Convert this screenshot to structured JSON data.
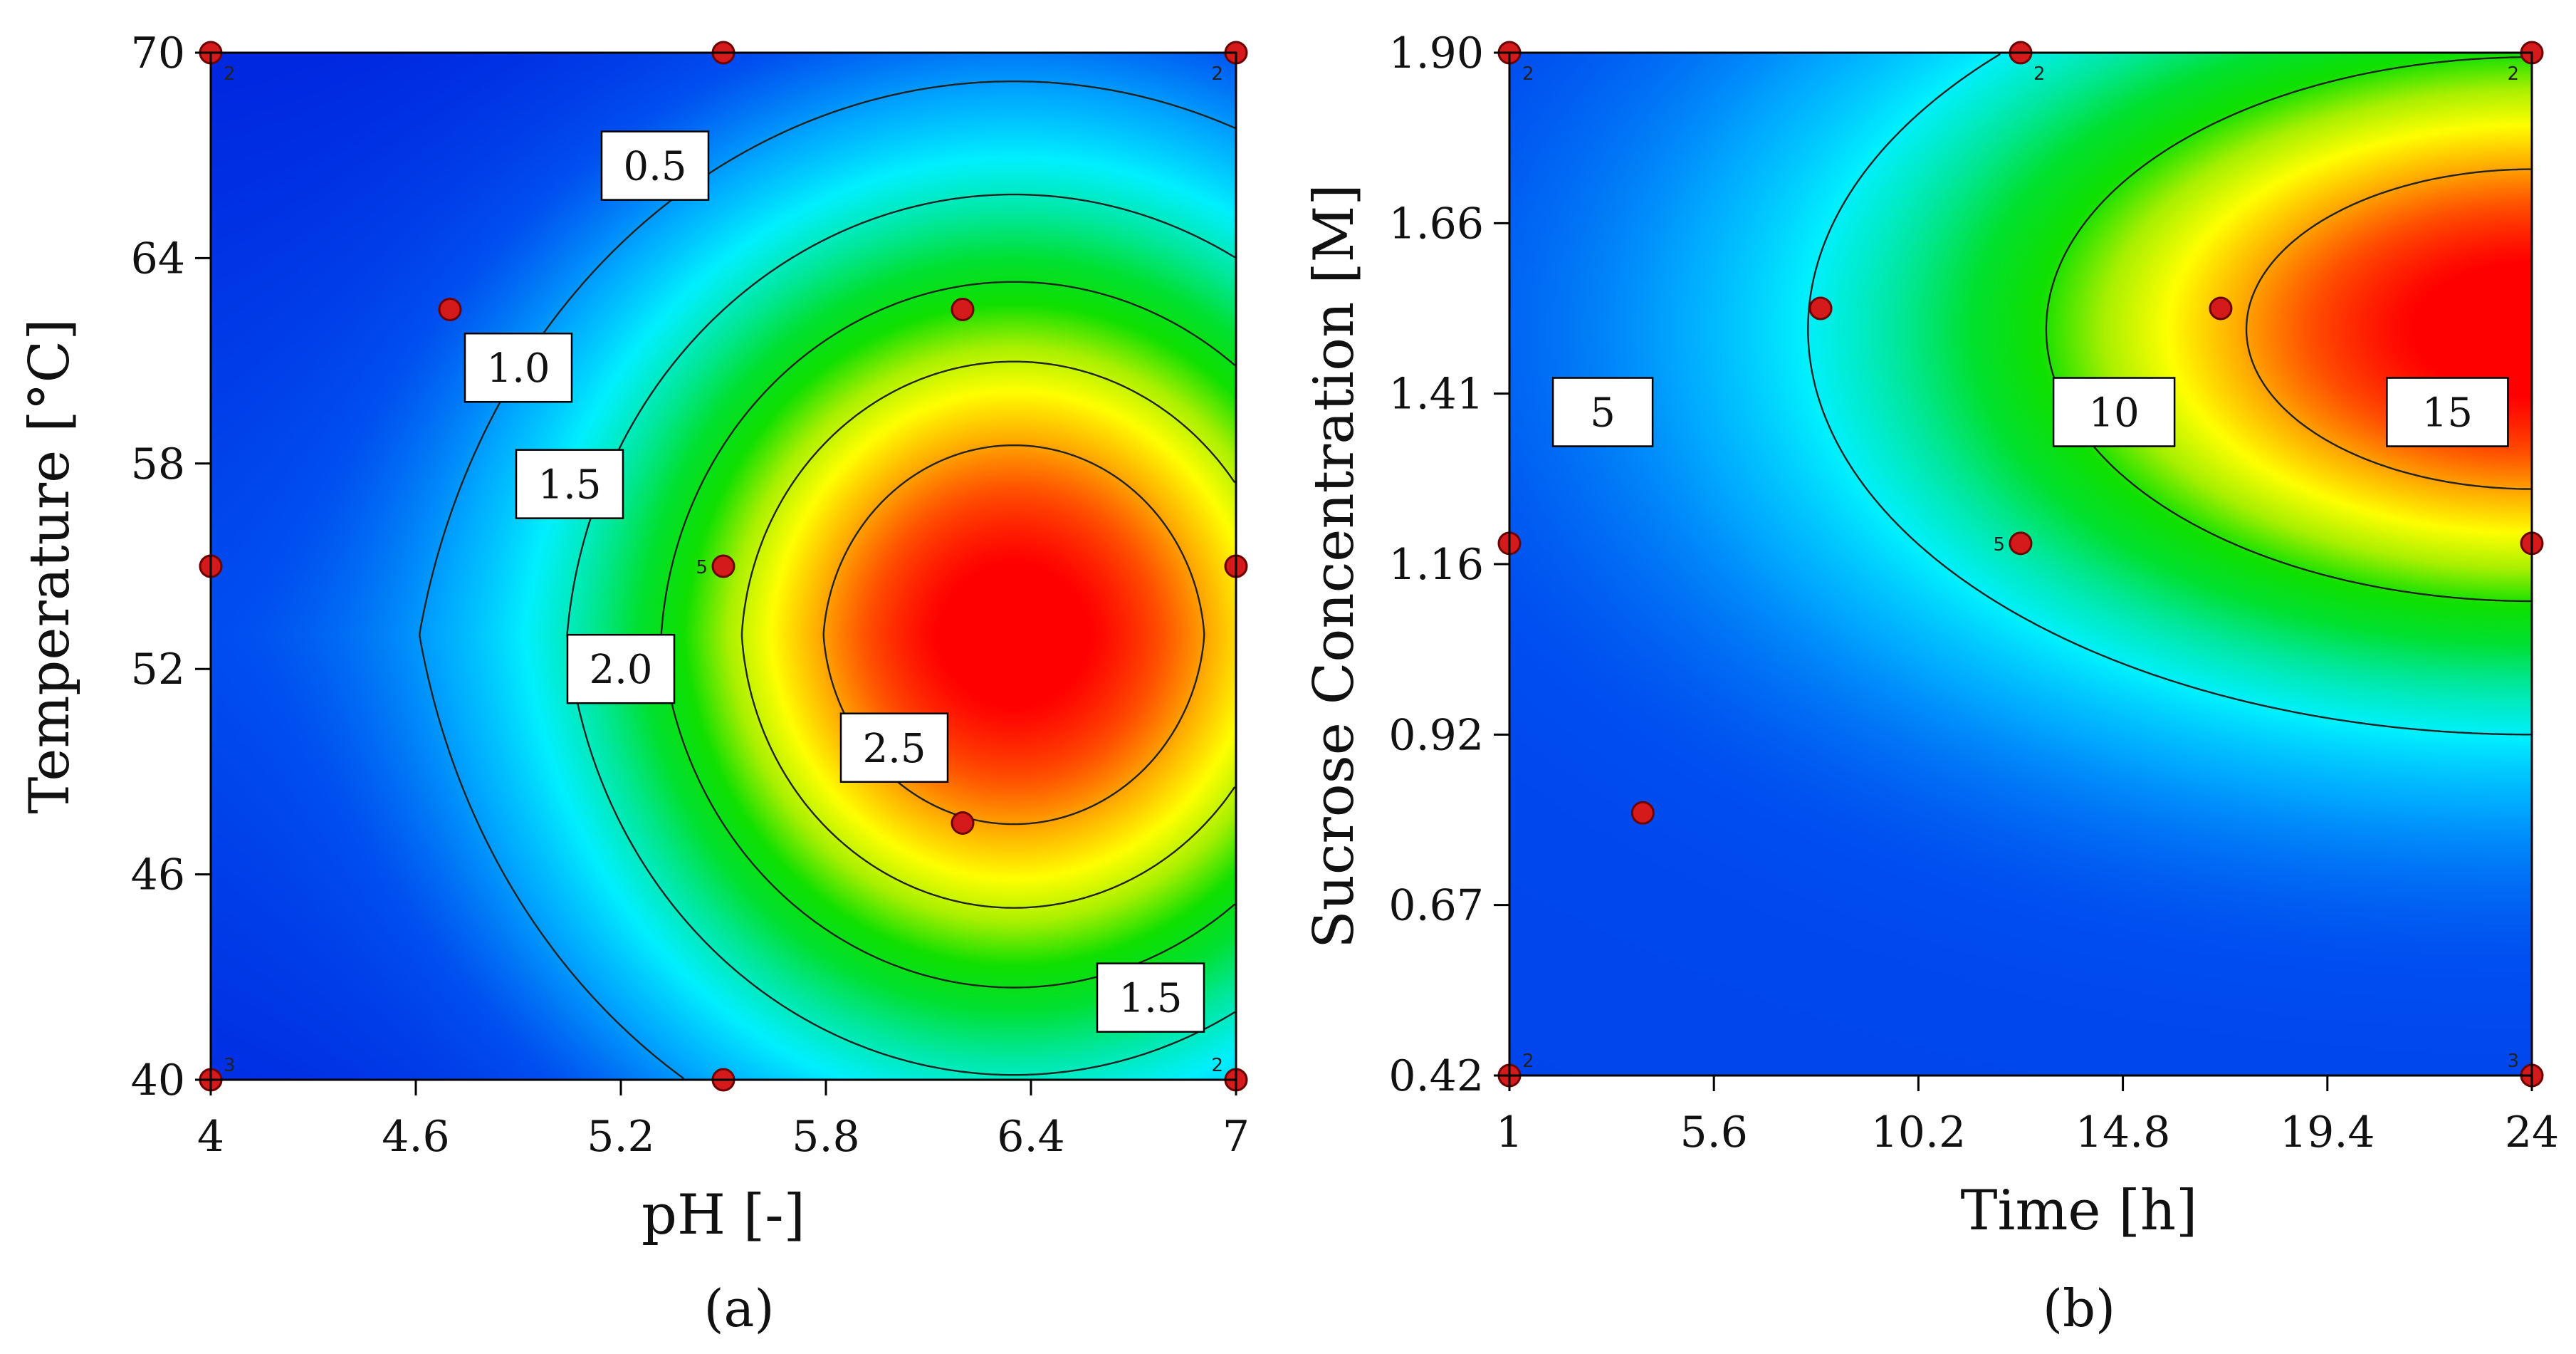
{
  "chart_data": [
    {
      "type": "heatmap",
      "panel": "(a)",
      "title": "",
      "xlabel": "pH [-]",
      "ylabel": "Temperature [°C]",
      "x_ticks": [
        "4",
        "4.6",
        "5.2",
        "5.8",
        "6.4",
        "7"
      ],
      "y_ticks": [
        "40",
        "46",
        "52",
        "58",
        "64",
        "70"
      ],
      "xlim": [
        4,
        7
      ],
      "ylim": [
        40,
        70
      ],
      "surface": {
        "max_at": [
          6.35,
          53
        ],
        "peak": 2.9,
        "falloff_x": 1.45,
        "falloff_y": 15.5,
        "offset": 0.35,
        "range": [
          0,
          3
        ]
      },
      "contours": [
        {
          "level": 0.5,
          "label": "0.5",
          "label_at": [
            5.3,
            66.7
          ]
        },
        {
          "level": 1.0,
          "label": "1.0",
          "label_at": [
            4.9,
            60.8
          ]
        },
        {
          "level": 1.5,
          "label": "1.5",
          "label_at": [
            5.05,
            57.4
          ]
        },
        {
          "level": 1.5,
          "label": "1.5",
          "label_at": [
            6.75,
            42.4
          ]
        },
        {
          "level": 2.0,
          "label": "2.0",
          "label_at": [
            5.2,
            52
          ]
        },
        {
          "level": 2.5,
          "label": "2.5",
          "label_at": [
            6.0,
            49.7
          ]
        }
      ],
      "design_points": [
        {
          "x": 4,
          "y": 70,
          "rep": "2"
        },
        {
          "x": 5.5,
          "y": 70,
          "rep": ""
        },
        {
          "x": 7,
          "y": 70,
          "rep": "2"
        },
        {
          "x": 4.7,
          "y": 62.5,
          "rep": ""
        },
        {
          "x": 6.2,
          "y": 62.5,
          "rep": ""
        },
        {
          "x": 4,
          "y": 55,
          "rep": ""
        },
        {
          "x": 5.5,
          "y": 55,
          "rep": "5"
        },
        {
          "x": 7,
          "y": 55,
          "rep": ""
        },
        {
          "x": 6.2,
          "y": 47.5,
          "rep": ""
        },
        {
          "x": 4,
          "y": 40,
          "rep": "3"
        },
        {
          "x": 5.5,
          "y": 40,
          "rep": ""
        },
        {
          "x": 7,
          "y": 40,
          "rep": "2"
        }
      ],
      "caption": "(a)"
    },
    {
      "type": "heatmap",
      "panel": "(b)",
      "title": "",
      "xlabel": "Time [h]",
      "ylabel": "Sucrose Concentration [M]",
      "x_ticks": [
        "1",
        "5.6",
        "10.2",
        "14.8",
        "19.4",
        "24"
      ],
      "y_ticks": [
        "0.42",
        "0.67",
        "0.92",
        "1.16",
        "1.41",
        "1.66",
        "1.90"
      ],
      "xlim": [
        1,
        24
      ],
      "ylim": [
        0.42,
        1.9
      ],
      "surface": {
        "max_at": [
          24,
          1.5
        ],
        "peak": 17.5,
        "base": 1.2,
        "falloff_x": 12.5,
        "falloff_y": 0.52,
        "range": [
          0,
          18
        ]
      },
      "contours": [
        {
          "level": 5,
          "label": "5",
          "label_at": [
            3.1,
            1.38
          ]
        },
        {
          "level": 10,
          "label": "10",
          "label_at": [
            14.6,
            1.38
          ]
        },
        {
          "level": 15,
          "label": "15",
          "label_at": [
            22.1,
            1.38
          ]
        }
      ],
      "design_points": [
        {
          "x": 1,
          "y": 1.9,
          "rep": "2"
        },
        {
          "x": 12.5,
          "y": 1.9,
          "rep": "2"
        },
        {
          "x": 24,
          "y": 1.9,
          "rep": "2"
        },
        {
          "x": 8,
          "y": 1.53,
          "rep": ""
        },
        {
          "x": 17,
          "y": 1.53,
          "rep": ""
        },
        {
          "x": 1,
          "y": 1.19,
          "rep": ""
        },
        {
          "x": 12.5,
          "y": 1.19,
          "rep": "5"
        },
        {
          "x": 24,
          "y": 1.19,
          "rep": ""
        },
        {
          "x": 4,
          "y": 0.8,
          "rep": ""
        },
        {
          "x": 1,
          "y": 0.42,
          "rep": "2"
        },
        {
          "x": 24,
          "y": 0.42,
          "rep": "3"
        }
      ],
      "caption": "(b)"
    }
  ],
  "colors": {
    "scale": [
      "#0028e0",
      "#0050f0",
      "#00a8ff",
      "#00f0ff",
      "#00e8a0",
      "#00e030",
      "#10e000",
      "#a8f000",
      "#ffff00",
      "#ffb000",
      "#ff5000",
      "#ff0000"
    ],
    "point_fill": "#d41a1a",
    "point_stroke": "#6a0000",
    "contour": "#222222"
  }
}
